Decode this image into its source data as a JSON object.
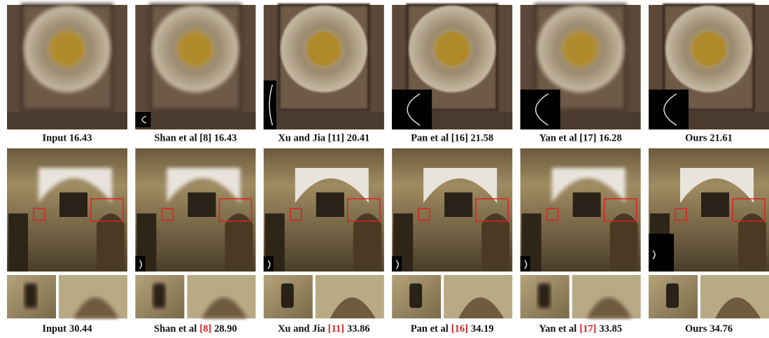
{
  "top_row": {
    "captions": [
      {
        "text": "Input 16.43"
      },
      {
        "text": "Shan et al [8] 16.43"
      },
      {
        "text": "Xu and Jia [11] 20.41"
      },
      {
        "text": "Pan et al [16] 21.58"
      },
      {
        "text": "Yan et al [17] 16.28"
      },
      {
        "text": "Ours 21.61"
      }
    ]
  },
  "bottom_row": {
    "captions": [
      {
        "method": "Input",
        "score": "30.44"
      },
      {
        "method": "Shan et al",
        "ref": "[8]",
        "score": "28.90"
      },
      {
        "method": "Xu and Jia",
        "ref": "[11]",
        "score": "33.86"
      },
      {
        "method": "Pan et al",
        "ref": "[16]",
        "score": "34.19"
      },
      {
        "method": "Yan et al",
        "ref": "[17]",
        "score": "33.85"
      },
      {
        "method": "Ours",
        "score": "34.76"
      }
    ]
  }
}
